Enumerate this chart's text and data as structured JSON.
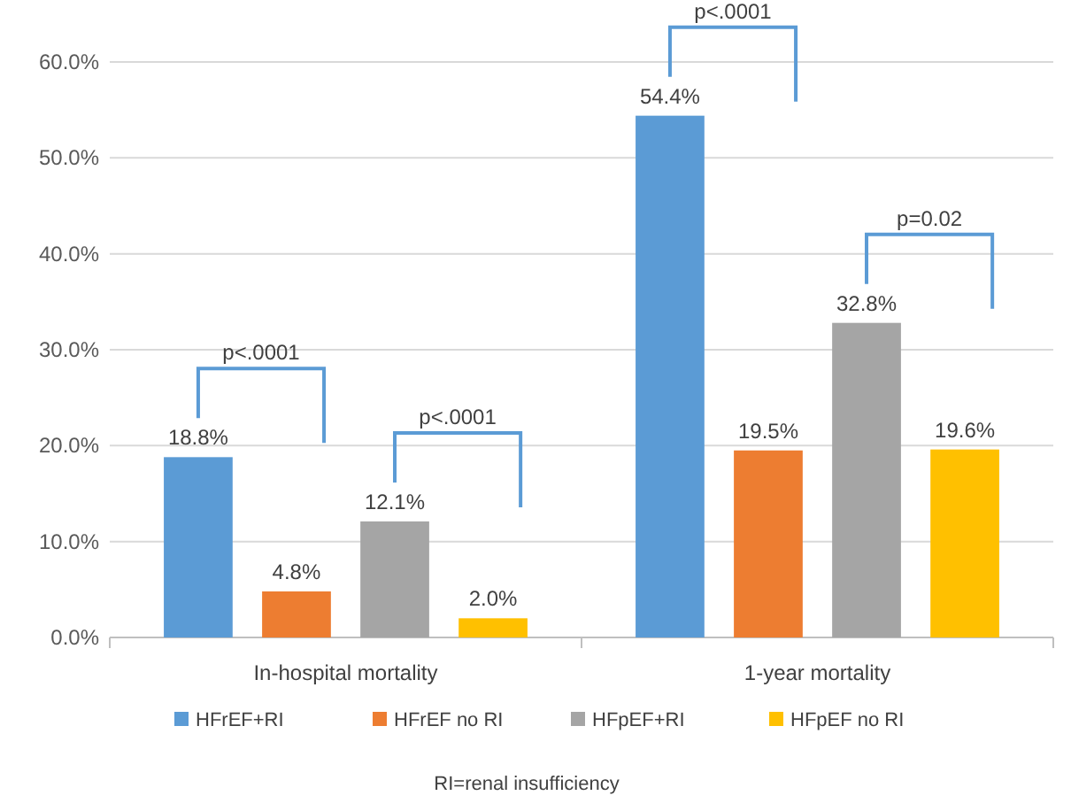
{
  "chart_data": {
    "type": "bar",
    "categories": [
      "In-hospital mortality",
      "1-year mortality"
    ],
    "series": [
      {
        "name": "HFrEF+RI",
        "color": "#5b9bd5",
        "values": [
          18.8,
          54.4
        ],
        "value_labels": [
          "18.8%",
          "54.4%"
        ]
      },
      {
        "name": "HFrEF no RI",
        "color": "#ed7d31",
        "values": [
          4.8,
          19.5
        ],
        "value_labels": [
          "4.8%",
          "19.5%"
        ]
      },
      {
        "name": "HFpEF+RI",
        "color": "#a5a5a5",
        "values": [
          12.1,
          32.8
        ],
        "value_labels": [
          "12.1%",
          "32.8%"
        ]
      },
      {
        "name": "HFpEF no RI",
        "color": "#ffc000",
        "values": [
          2.0,
          19.6
        ],
        "value_labels": [
          "2.0%",
          "19.6%"
        ]
      }
    ],
    "ylim": [
      0,
      60
    ],
    "yticks": [
      {
        "value": 0,
        "label": "0.0%"
      },
      {
        "value": 10,
        "label": "10.0%"
      },
      {
        "value": 20,
        "label": "20.0%"
      },
      {
        "value": 30,
        "label": "30.0%"
      },
      {
        "value": 40,
        "label": "40.0%"
      },
      {
        "value": 50,
        "label": "50.0%"
      },
      {
        "value": 60,
        "label": "60.0%"
      }
    ],
    "grid": "y",
    "legend": "bottom",
    "annotations": [
      "p<.0001",
      "p<.0001",
      "p<.0001",
      "p=0.02",
      "RI=renal insufficiency"
    ]
  }
}
